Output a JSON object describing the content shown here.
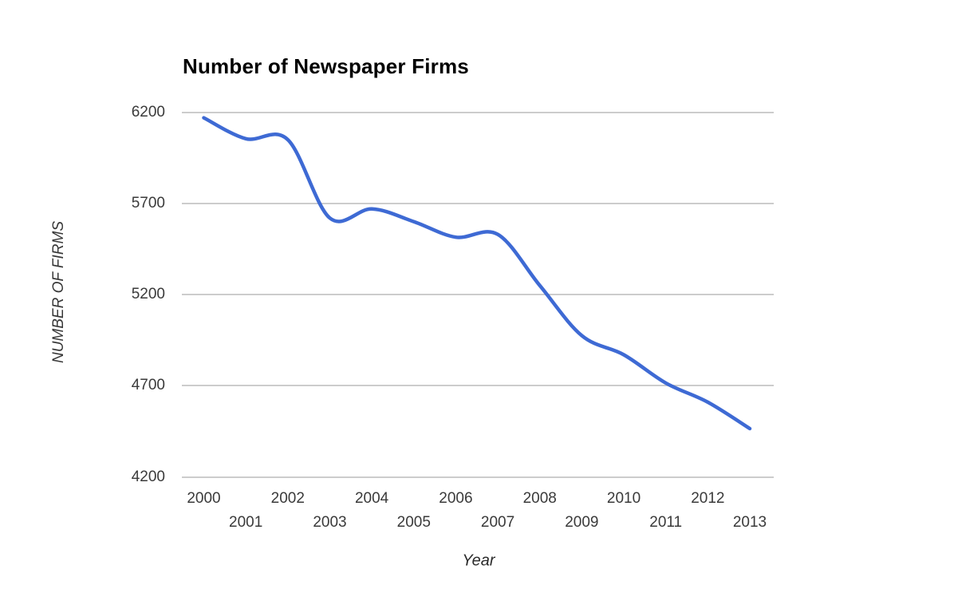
{
  "chart_data": {
    "type": "line",
    "title": "Number of Newspaper Firms",
    "xlabel": "Year",
    "ylabel": "NUMBER OF FIRMS",
    "smooth": true,
    "grid": true,
    "legend_position": "none",
    "x": [
      2000,
      2001,
      2002,
      2003,
      2004,
      2005,
      2006,
      2007,
      2008,
      2009,
      2010,
      2011,
      2012,
      2013
    ],
    "values": [
      6170,
      6055,
      6050,
      5620,
      5670,
      5600,
      5515,
      5530,
      5250,
      4975,
      4870,
      4715,
      4610,
      4465
    ],
    "x_tick_labels": [
      "2000",
      "2001",
      "2002",
      "2003",
      "2004",
      "2005",
      "2006",
      "2007",
      "2008",
      "2009",
      "2010",
      "2011",
      "2012",
      "2013"
    ],
    "y_ticks": [
      6200,
      5700,
      5200,
      4700,
      4200
    ],
    "ylim": [
      4200,
      6200
    ],
    "colors": {
      "line": "#3e6ad4",
      "gridline": "#cccccc",
      "tick_text": "#3a3a3a",
      "title_text": "#000000",
      "background": "#ffffff"
    }
  }
}
